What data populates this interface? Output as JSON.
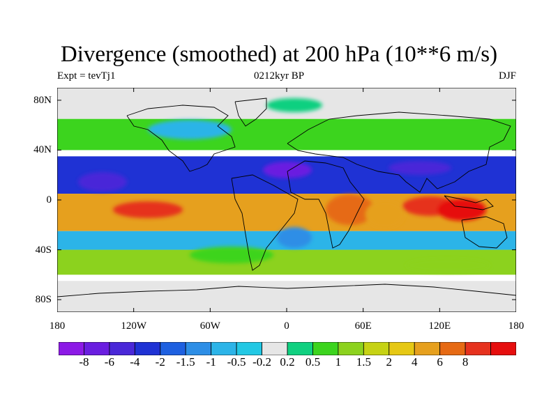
{
  "title": "Divergence (smoothed) at 200 hPa (10**6 m/s)",
  "subtitle_left": "Expt = tevTj1",
  "subtitle_center": "0212kyr BP",
  "subtitle_right": "DJF",
  "map": {
    "lon_range": [
      -180,
      180
    ],
    "lat_range": [
      -90,
      90
    ],
    "y_ticks": [
      {
        "lat": 80,
        "label": "80N"
      },
      {
        "lat": 40,
        "label": "40N"
      },
      {
        "lat": 0,
        "label": "0"
      },
      {
        "lat": -40,
        "label": "40S"
      },
      {
        "lat": -80,
        "label": "80S"
      }
    ],
    "x_ticks": [
      {
        "lon": -180,
        "label": "180"
      },
      {
        "lon": -120,
        "label": "120W"
      },
      {
        "lon": -60,
        "label": "60W"
      },
      {
        "lon": 0,
        "label": "0"
      },
      {
        "lon": 60,
        "label": "60E"
      },
      {
        "lon": 120,
        "label": "120E"
      },
      {
        "lon": 180,
        "label": "180"
      }
    ],
    "field_bands": [
      {
        "name": "arctic",
        "lat_min": 65,
        "lat_max": 90,
        "level": -0.2
      },
      {
        "name": "north-midlat",
        "lat_min": 40,
        "lat_max": 65,
        "level": 0.5
      },
      {
        "name": "north-subtropics",
        "lat_min": 5,
        "lat_max": 35,
        "level": -4
      },
      {
        "name": "equatorial-convergence",
        "lat_min": -25,
        "lat_max": 5,
        "level": 4
      },
      {
        "name": "south-subtropics",
        "lat_min": -40,
        "lat_max": -25,
        "level": -1
      },
      {
        "name": "south-midlat",
        "lat_min": -60,
        "lat_max": -40,
        "level": 1
      },
      {
        "name": "antarctic",
        "lat_min": -90,
        "lat_max": -65,
        "level": -0.2
      }
    ]
  },
  "colorbar": {
    "colors": [
      "#8c1ae6",
      "#6a1ee0",
      "#4a28d8",
      "#1f32d4",
      "#1e60e0",
      "#2d8ee6",
      "#2cb4e8",
      "#22c8e4",
      "#e6e6e6",
      "#10d080",
      "#3cd41e",
      "#8cd21e",
      "#c6d214",
      "#e6c814",
      "#e6a01e",
      "#e66a14",
      "#e6321e",
      "#e60e0e"
    ],
    "labels": [
      "-8",
      "-6",
      "-4",
      "-2",
      "-1.5",
      "-1",
      "-0.5",
      "-0.2",
      "0.2",
      "0.5",
      "1",
      "1.5",
      "2",
      "4",
      "6",
      "8"
    ]
  }
}
